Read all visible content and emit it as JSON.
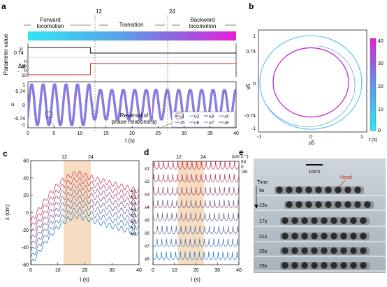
{
  "panel_letters": {
    "a": "a",
    "b": "b",
    "c": "c",
    "d": "d",
    "e": "e"
  },
  "colors": {
    "magenta": "#d21ecf",
    "cyan": "#2fe0f0",
    "red": "#d02020",
    "shade": "#f6dcc0"
  },
  "panel_a": {
    "t_markers": {
      "t12": "12",
      "t24": "24"
    },
    "phases": {
      "forward": [
        "Forward",
        "locomotion"
      ],
      "transition": "Transition",
      "backward": [
        "Backward",
        "locomotion"
      ]
    },
    "y_label_param": "Parameter value",
    "mu_label": "μ",
    "mu_tick": "0.74",
    "dphi_label": "Δφ",
    "dphi_ticks": {
      "pi_top": "π",
      "twenty_top": "20",
      "minus": "-",
      "pi_bot": "π",
      "twenty_bot": "20"
    },
    "u_label": "u",
    "u_ticks": [
      "1",
      "0.74",
      "0",
      "-0.74",
      "-1"
    ],
    "x_ticks": [
      "0",
      "5",
      "10",
      "15",
      "20",
      "25",
      "30",
      "35",
      "40"
    ],
    "x_label": "t (s)",
    "annotation": [
      "Reversal of",
      "phase relationship"
    ],
    "legend": [
      "u1",
      "u2",
      "u3",
      "u4",
      "u5",
      "u6",
      "u7",
      "u8"
    ]
  },
  "panel_b": {
    "x_label": "u5",
    "y_label": "v5",
    "x_ticks": [
      "-1",
      "0",
      "1"
    ],
    "y_ticks": [
      "1",
      "0.74",
      "0",
      "-0.74",
      "-1"
    ],
    "colorbar_ticks": [
      "40",
      "30",
      "20",
      "10",
      "0"
    ],
    "colorbar_label": "t (s)"
  },
  "panel_c": {
    "t_markers": {
      "t12": "12",
      "t24": "24"
    },
    "y_label": "x (cm)",
    "y_ticks": [
      "60",
      "40",
      "20",
      "0",
      "-20",
      "-40",
      "-60"
    ],
    "x_ticks": [
      "0",
      "10",
      "20",
      "30",
      "40"
    ],
    "x_label": "t (s)",
    "series_labels": [
      "#1",
      "#2",
      "#3",
      "#4",
      "#5",
      "#6",
      "#7",
      "#8"
    ]
  },
  "panel_d": {
    "t_markers": {
      "t12": "12",
      "t24": "24"
    },
    "unit_label": "(cm s⁻¹)",
    "unit_ticks": [
      "50",
      "0",
      "-50"
    ],
    "row_labels": [
      "ẋ1",
      "ẋ2",
      "ẋ3",
      "ẋ4",
      "ẋ5",
      "ẋ6",
      "ẋ7",
      "ẋ8"
    ],
    "x_ticks": [
      "0",
      "10",
      "20",
      "30",
      "40"
    ],
    "x_label": "t (s)"
  },
  "panel_e": {
    "scale_label": "10cm",
    "head_label": "Head",
    "time_label": "Time",
    "times": [
      "9s",
      "13s",
      "17s",
      "21s",
      "25s",
      "29s"
    ]
  },
  "chart_data": [
    {
      "type": "line",
      "panel": "a-top",
      "x_range": [
        0,
        40
      ],
      "series": [
        {
          "name": "μ",
          "x": [
            0,
            12,
            12,
            40
          ],
          "values": [
            1,
            1,
            0.74,
            0.74
          ]
        },
        {
          "name": "Δφ",
          "x": [
            0,
            12,
            12,
            40
          ],
          "values": [
            -0.157,
            -0.157,
            0.157,
            0.157
          ]
        }
      ]
    },
    {
      "type": "line",
      "panel": "a-bottom",
      "x_range": [
        0,
        40
      ],
      "ylim": [
        -1,
        1
      ],
      "period_s": 2.2,
      "amplitude_t0_12": 1,
      "amplitude_t12_40": 0.74,
      "series": [
        {
          "name": "u1"
        },
        {
          "name": "u2"
        },
        {
          "name": "u3"
        },
        {
          "name": "u4"
        },
        {
          "name": "u5"
        },
        {
          "name": "u6"
        },
        {
          "name": "u7"
        },
        {
          "name": "u8"
        }
      ]
    },
    {
      "type": "line",
      "panel": "b",
      "x": "u5",
      "y": "v5",
      "xlim": [
        -1,
        1
      ],
      "ylim": [
        -1,
        1
      ],
      "outer_radius": 1,
      "inner_radius": 0.74
    },
    {
      "type": "line",
      "panel": "c",
      "x_range": [
        0,
        40
      ],
      "ylim": [
        -60,
        60
      ],
      "shaded": [
        12,
        24
      ],
      "series": [
        {
          "name": "#1",
          "start": -11,
          "peak": 45,
          "end": 25
        },
        {
          "name": "#2",
          "start": -18,
          "peak": 38,
          "end": 18
        },
        {
          "name": "#3",
          "start": -25,
          "peak": 31,
          "end": 11
        },
        {
          "name": "#4",
          "start": -32,
          "peak": 24,
          "end": 4
        },
        {
          "name": "#5",
          "start": -39,
          "peak": 17,
          "end": -3
        },
        {
          "name": "#6",
          "start": -46,
          "peak": 10,
          "end": -10
        },
        {
          "name": "#7",
          "start": -53,
          "peak": 3,
          "end": -17
        },
        {
          "name": "#8",
          "start": -60,
          "peak": -4,
          "end": -24
        }
      ]
    },
    {
      "type": "line",
      "panel": "d",
      "x_range": [
        0,
        40
      ],
      "shaded": [
        12,
        24
      ],
      "ylim_per_row": [
        -50,
        50
      ],
      "series": [
        {
          "name": "ẋ1"
        },
        {
          "name": "ẋ2"
        },
        {
          "name": "ẋ3"
        },
        {
          "name": "ẋ4"
        },
        {
          "name": "ẋ5"
        },
        {
          "name": "ẋ6"
        },
        {
          "name": "ẋ7"
        },
        {
          "name": "ẋ8"
        }
      ]
    }
  ]
}
